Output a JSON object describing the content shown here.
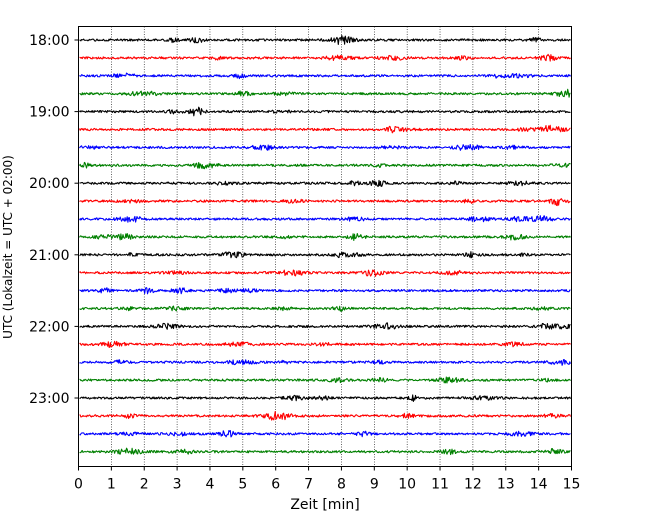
{
  "chart_data": {
    "type": "line",
    "title": "",
    "xlabel": "Zeit  [min]",
    "ylabel": "UTC (Lokalzeit = UTC + 02:00)",
    "x_range": [
      0,
      15
    ],
    "x_ticks": [
      "0",
      "1",
      "2",
      "3",
      "4",
      "5",
      "6",
      "7",
      "8",
      "9",
      "10",
      "11",
      "12",
      "13",
      "14",
      "15"
    ],
    "y_tick_labels": [
      "18:00",
      "19:00",
      "20:00",
      "21:00",
      "22:00",
      "23:00"
    ],
    "rows_per_hour": 4,
    "row_start_times": [
      "18:00",
      "18:15",
      "18:30",
      "18:45",
      "19:00",
      "19:15",
      "19:30",
      "19:45",
      "20:00",
      "20:15",
      "20:30",
      "20:45",
      "21:00",
      "21:15",
      "21:30",
      "21:45",
      "22:00",
      "22:15",
      "22:30",
      "22:45",
      "23:00",
      "23:15",
      "23:30",
      "23:45"
    ],
    "row_colors": [
      "#000000",
      "#ff0000",
      "#0000ff",
      "#008000"
    ],
    "vertical_grid": "dotted at each minute",
    "series_note": "seismogram traces: low-amplitude noise on each row"
  }
}
